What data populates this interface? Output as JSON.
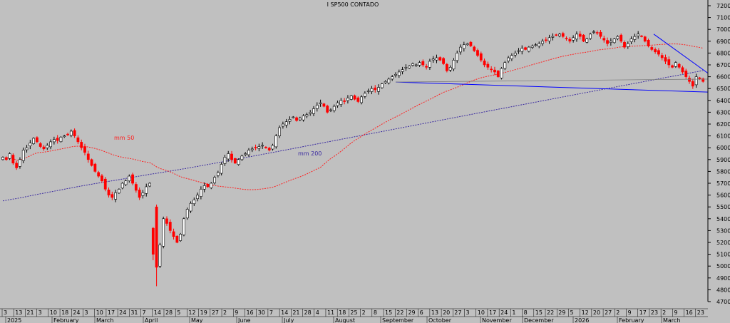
{
  "colors": {
    "background": "#c0c0c0",
    "up_candle": "#ffffff",
    "down_candle": "#ff0000",
    "ma50": "#ff2020",
    "ma200": "#3a2aa0",
    "trendline": "#0000ff",
    "support": "#0000ff",
    "horizontal": "#808080"
  },
  "chart_data": {
    "type": "candlestick",
    "title": "I SP500 CONTADO",
    "ylim": [
      4700,
      7200
    ],
    "y_ticks": [
      4700,
      4800,
      4900,
      5000,
      5100,
      5200,
      5300,
      5400,
      5500,
      5600,
      5700,
      5800,
      5900,
      6000,
      6100,
      6200,
      6300,
      6400,
      6500,
      6600,
      6700,
      6800,
      6900,
      7000,
      7100,
      7200
    ],
    "x_ticks": [
      "3",
      "13",
      "21",
      "3",
      "10",
      "18",
      "24",
      "3",
      "10",
      "17",
      "24",
      "31",
      "7",
      "14",
      "28",
      "5",
      "12",
      "19",
      "27",
      "2",
      "9",
      "16",
      "30",
      "7",
      "14",
      "21",
      "28",
      "4",
      "11",
      "18",
      "25",
      "2",
      "8",
      "15",
      "22",
      "29",
      "6",
      "13",
      "20",
      "27",
      "3",
      "10",
      "17",
      "24",
      "1",
      "8",
      "15",
      "22",
      "29",
      "5",
      "12",
      "20",
      "27",
      "2",
      "9",
      "17",
      "23",
      "2",
      "9",
      "16",
      "23"
    ],
    "months": [
      "2025",
      "February",
      "March",
      "April",
      "May",
      "June",
      "July",
      "August",
      "September",
      "October",
      "November",
      "December",
      "2026",
      "February",
      "March"
    ],
    "annotations": {
      "ma50_label": "mm 50",
      "ma200_label": "mm 200"
    },
    "closes": [
      5920,
      5900,
      5950,
      5870,
      5830,
      5900,
      5980,
      6000,
      6040,
      6080,
      6050,
      6010,
      5990,
      6020,
      6050,
      6070,
      6060,
      6090,
      6100,
      6110,
      6140,
      6100,
      6050,
      6000,
      5960,
      5900,
      5850,
      5800,
      5760,
      5720,
      5650,
      5600,
      5580,
      5620,
      5650,
      5700,
      5720,
      5760,
      5700,
      5640,
      5580,
      5620,
      5670,
      5700,
      5100,
      4990,
      5180,
      5400,
      5360,
      5300,
      5250,
      5200,
      5270,
      5400,
      5480,
      5530,
      5560,
      5600,
      5650,
      5680,
      5670,
      5700,
      5750,
      5790,
      5860,
      5920,
      5950,
      5900,
      5870,
      5900,
      5930,
      5950,
      5980,
      5990,
      6000,
      6010,
      6020,
      6000,
      5980,
      6020,
      6100,
      6170,
      6200,
      6220,
      6240,
      6260,
      6230,
      6250,
      6270,
      6280,
      6300,
      6330,
      6360,
      6380,
      6350,
      6300,
      6320,
      6350,
      6380,
      6400,
      6390,
      6420,
      6440,
      6410,
      6390,
      6430,
      6460,
      6480,
      6500,
      6490,
      6510,
      6540,
      6560,
      6580,
      6600,
      6620,
      6640,
      6660,
      6680,
      6690,
      6710,
      6700,
      6720,
      6700,
      6680,
      6730,
      6750,
      6760,
      6740,
      6710,
      6650,
      6680,
      6740,
      6800,
      6850,
      6870,
      6880,
      6860,
      6820,
      6780,
      6740,
      6700,
      6680,
      6660,
      6640,
      6600,
      6670,
      6720,
      6760,
      6780,
      6800,
      6820,
      6840,
      6830,
      6850,
      6860,
      6870,
      6880,
      6900,
      6910,
      6930,
      6940,
      6950,
      6960,
      6940,
      6920,
      6900,
      6930,
      6960,
      6940,
      6900,
      6920,
      6960,
      6980,
      6970,
      6940,
      6910,
      6880,
      6900,
      6920,
      6940,
      6900,
      6850,
      6880,
      6920,
      6940,
      6960,
      6940,
      6900,
      6860,
      6830,
      6810,
      6790,
      6760,
      6730,
      6700,
      6680,
      6720,
      6680,
      6640,
      6600,
      6560,
      6520,
      6600,
      6580,
      6560
    ]
  }
}
